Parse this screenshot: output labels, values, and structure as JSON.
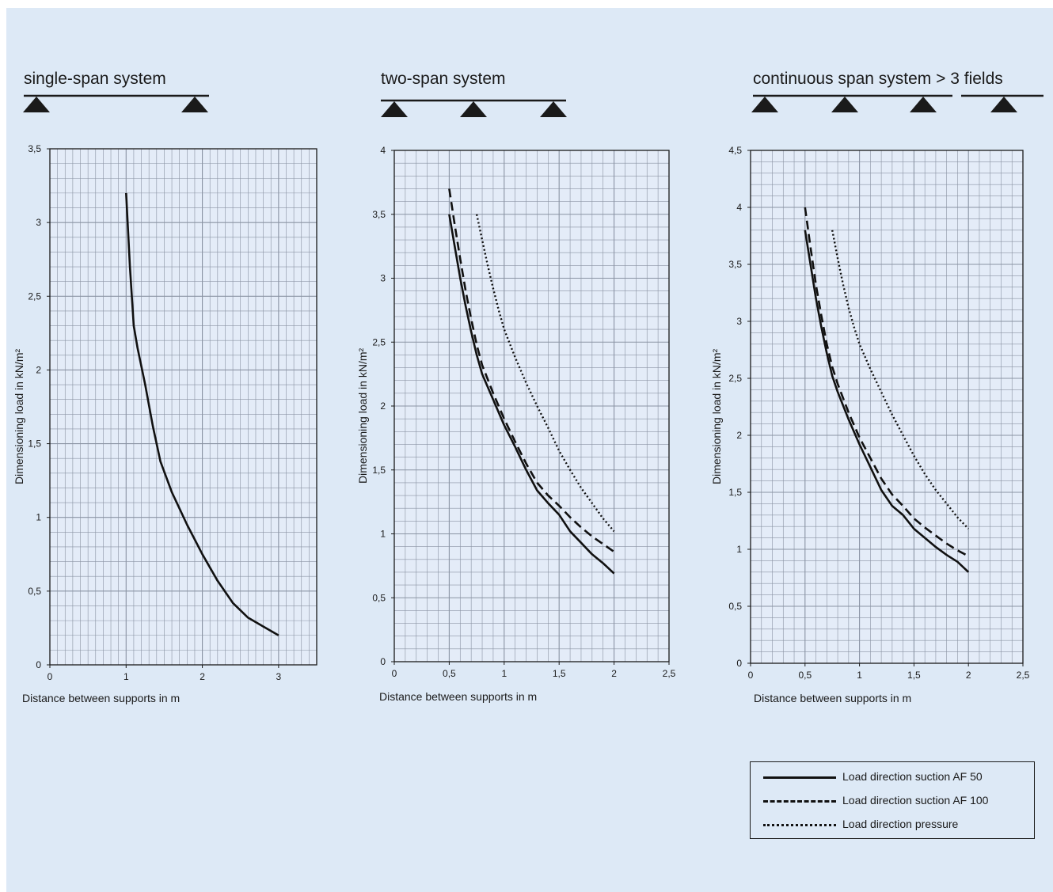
{
  "colors": {
    "background": "#dde9f6",
    "grid": "#8a93a3",
    "axis": "#1a1a1a",
    "series": "#111111"
  },
  "legend": {
    "items": [
      {
        "label": "Load direction suction AF 50",
        "style": "solid"
      },
      {
        "label": "Load direction suction AF 100",
        "style": "dashed"
      },
      {
        "label": "Load direction pressure",
        "style": "dotted"
      }
    ]
  },
  "chart_data": [
    {
      "type": "line",
      "title": "single-span system",
      "supports": 2,
      "xlabel": "Distance between supports in m",
      "ylabel": "Dimensioning load in kN/m²",
      "xlim": [
        0,
        3.5
      ],
      "ylim": [
        0,
        3.5
      ],
      "xticks": [
        "0",
        "1",
        "2",
        "3"
      ],
      "xtick_values": [
        0,
        1,
        2,
        3
      ],
      "yticks": [
        "0",
        "0,5",
        "1",
        "1,5",
        "2",
        "2,5",
        "3",
        "3,5"
      ],
      "ytick_values": [
        0,
        0.5,
        1,
        1.5,
        2,
        2.5,
        3,
        3.5
      ],
      "grid": true,
      "series": [
        {
          "style": "solid",
          "x": [
            1.0,
            1.05,
            1.1,
            1.15,
            1.25,
            1.35,
            1.45,
            1.6,
            1.8,
            2.0,
            2.2,
            2.4,
            2.6,
            2.8,
            3.0
          ],
          "y": [
            3.2,
            2.7,
            2.3,
            2.15,
            1.9,
            1.62,
            1.38,
            1.17,
            0.95,
            0.75,
            0.57,
            0.42,
            0.32,
            0.26,
            0.2
          ]
        }
      ]
    },
    {
      "type": "line",
      "title": "two-span system",
      "supports": 3,
      "xlabel": "Distance between supports in m",
      "ylabel": "Dimensioning load in kN/m²",
      "xlim": [
        0,
        2.5
      ],
      "ylim": [
        0,
        4
      ],
      "xticks": [
        "0",
        "0,5",
        "1",
        "1,5",
        "2",
        "2,5"
      ],
      "xtick_values": [
        0,
        0.5,
        1,
        1.5,
        2,
        2.5
      ],
      "yticks": [
        "0",
        "0,5",
        "1",
        "1,5",
        "2",
        "2,5",
        "3",
        "3,5",
        "4"
      ],
      "ytick_values": [
        0,
        0.5,
        1,
        1.5,
        2,
        2.5,
        3,
        3.5,
        4
      ],
      "grid": true,
      "series": [
        {
          "style": "solid",
          "x": [
            0.5,
            0.55,
            0.6,
            0.65,
            0.7,
            0.75,
            0.8,
            0.9,
            1.0,
            1.1,
            1.2,
            1.3,
            1.4,
            1.5,
            1.6,
            1.7,
            1.8,
            1.9,
            2.0
          ],
          "y": [
            3.5,
            3.25,
            3.0,
            2.78,
            2.58,
            2.4,
            2.25,
            2.05,
            1.85,
            1.68,
            1.5,
            1.34,
            1.24,
            1.15,
            1.02,
            0.93,
            0.84,
            0.77,
            0.69
          ]
        },
        {
          "style": "dashed",
          "x": [
            0.5,
            0.55,
            0.6,
            0.65,
            0.7,
            0.75,
            0.8,
            0.9,
            1.0,
            1.1,
            1.2,
            1.3,
            1.4,
            1.5,
            1.6,
            1.7,
            1.8,
            1.9,
            2.0
          ],
          "y": [
            3.7,
            3.42,
            3.15,
            2.9,
            2.68,
            2.48,
            2.32,
            2.1,
            1.9,
            1.72,
            1.55,
            1.4,
            1.3,
            1.22,
            1.13,
            1.05,
            0.98,
            0.92,
            0.86
          ]
        },
        {
          "style": "dotted",
          "x": [
            0.75,
            0.8,
            0.85,
            0.9,
            0.95,
            1.0,
            1.1,
            1.2,
            1.3,
            1.4,
            1.5,
            1.6,
            1.7,
            1.8,
            1.9,
            2.0
          ],
          "y": [
            3.5,
            3.3,
            3.1,
            2.92,
            2.75,
            2.6,
            2.38,
            2.18,
            2.0,
            1.83,
            1.65,
            1.5,
            1.36,
            1.24,
            1.12,
            1.02
          ]
        }
      ]
    },
    {
      "type": "line",
      "title": "continuous span system > 3 fields",
      "supports": 4,
      "xlabel": "Distance between supports in m",
      "ylabel": "Dimensioning load in kN/m²",
      "xlim": [
        0,
        2.5
      ],
      "ylim": [
        0,
        4.5
      ],
      "xticks": [
        "0",
        "0,5",
        "1",
        "1,5",
        "2",
        "2,5"
      ],
      "xtick_values": [
        0,
        0.5,
        1,
        1.5,
        2,
        2.5
      ],
      "yticks": [
        "0",
        "0,5",
        "1",
        "1,5",
        "2",
        "2,5",
        "3",
        "3,5",
        "4",
        "4,5"
      ],
      "ytick_values": [
        0,
        0.5,
        1,
        1.5,
        2,
        2.5,
        3,
        3.5,
        4,
        4.5
      ],
      "grid": true,
      "series": [
        {
          "style": "solid",
          "x": [
            0.5,
            0.55,
            0.6,
            0.65,
            0.7,
            0.75,
            0.8,
            0.9,
            1.0,
            1.1,
            1.2,
            1.3,
            1.4,
            1.5,
            1.6,
            1.7,
            1.8,
            1.9,
            2.0
          ],
          "y": [
            3.8,
            3.5,
            3.2,
            2.95,
            2.72,
            2.52,
            2.38,
            2.14,
            1.92,
            1.72,
            1.52,
            1.38,
            1.3,
            1.18,
            1.1,
            1.02,
            0.95,
            0.89,
            0.8
          ]
        },
        {
          "style": "dashed",
          "x": [
            0.5,
            0.55,
            0.6,
            0.65,
            0.7,
            0.75,
            0.8,
            0.9,
            1.0,
            1.1,
            1.2,
            1.3,
            1.4,
            1.5,
            1.6,
            1.7,
            1.8,
            1.9,
            2.0
          ],
          "y": [
            4.0,
            3.65,
            3.32,
            3.05,
            2.8,
            2.6,
            2.45,
            2.2,
            1.98,
            1.8,
            1.62,
            1.48,
            1.38,
            1.27,
            1.19,
            1.12,
            1.05,
            0.99,
            0.94
          ]
        },
        {
          "style": "dotted",
          "x": [
            0.75,
            0.8,
            0.85,
            0.9,
            0.95,
            1.0,
            1.1,
            1.2,
            1.3,
            1.4,
            1.5,
            1.6,
            1.7,
            1.8,
            1.9,
            2.0
          ],
          "y": [
            3.8,
            3.55,
            3.32,
            3.12,
            2.95,
            2.8,
            2.58,
            2.38,
            2.18,
            2.0,
            1.82,
            1.66,
            1.52,
            1.4,
            1.28,
            1.18
          ]
        }
      ]
    }
  ]
}
